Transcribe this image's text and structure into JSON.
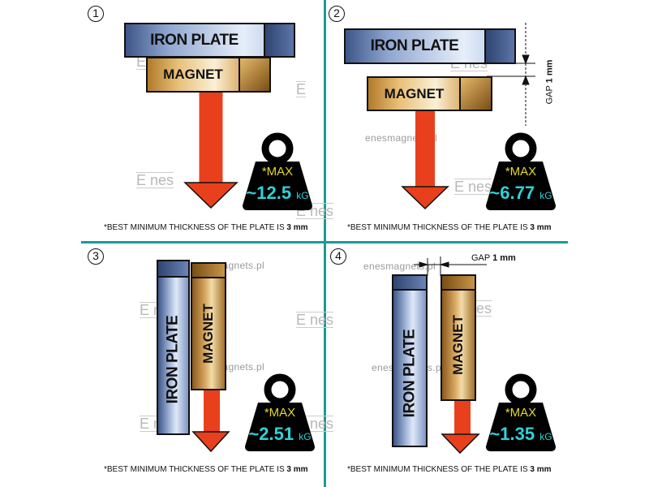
{
  "panels": [
    {
      "number": "1",
      "iron_label": "IRON PLATE",
      "magnet_label": "MAGNET",
      "max_label": "*MAX",
      "force": "~12.5",
      "unit": "kG",
      "footnote": "*BEST MINIMUM THICKNESS OF THE PLATE IS",
      "footnote_value": "3 mm"
    },
    {
      "number": "2",
      "iron_label": "IRON PLATE",
      "magnet_label": "MAGNET",
      "max_label": "*MAX",
      "force": "~6.77",
      "unit": "kG",
      "gap_label": "GAP",
      "gap_value": "1 mm",
      "footnote": "*BEST MINIMUM THICKNESS OF THE PLATE IS",
      "footnote_value": "3 mm"
    },
    {
      "number": "3",
      "iron_label": "IRON  PLATE",
      "magnet_label": "MAGNET",
      "max_label": "*MAX",
      "force": "~2.51",
      "unit": "kG",
      "footnote": "*BEST MINIMUM THICKNESS OF THE PLATE IS",
      "footnote_value": "3 mm"
    },
    {
      "number": "4",
      "iron_label": "IRON PLATE",
      "magnet_label": "MAGNET",
      "max_label": "*MAX",
      "force": "~1.35",
      "unit": "kG",
      "gap_label": "GAP",
      "gap_value": "1 mm",
      "footnote": "*BEST MINIMUM THICKNESS OF THE PLATE IS",
      "footnote_value": "3 mm"
    }
  ],
  "watermark": {
    "url": "enesmagnets.pl",
    "logo": "Enes"
  },
  "colors": {
    "divider": "#1a9a96",
    "arrow": "#e8401c",
    "weight": "#000000",
    "max_text": "#e6d82a",
    "force_text": "#2fd2d8"
  }
}
